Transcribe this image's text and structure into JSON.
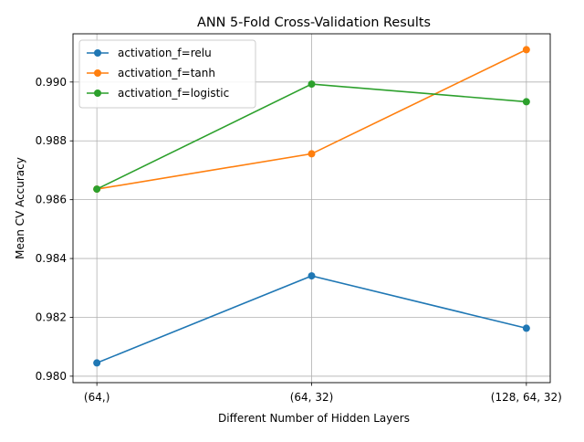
{
  "chart_data": {
    "type": "line",
    "title": "ANN 5-Fold Cross-Validation Results",
    "xlabel": "Different Number of Hidden Layers",
    "ylabel": "Mean CV Accuracy",
    "categories": [
      "(64,)",
      "(64, 32)",
      "(128, 64, 32)"
    ],
    "ylim": [
      0.97978,
      0.99164
    ],
    "yticks": [
      0.98,
      0.982,
      0.984,
      0.986,
      0.988,
      0.99
    ],
    "ytick_labels": [
      "0.980",
      "0.982",
      "0.984",
      "0.986",
      "0.988",
      "0.990"
    ],
    "grid": true,
    "legend_position": "top-left",
    "series": [
      {
        "name": "activation_f=relu",
        "color": "#1f77b4",
        "values": [
          0.98045,
          0.98341,
          0.98163
        ]
      },
      {
        "name": "activation_f=tanh",
        "color": "#ff7f0e",
        "values": [
          0.98636,
          0.98756,
          0.9911
        ]
      },
      {
        "name": "activation_f=logistic",
        "color": "#2ca02c",
        "values": [
          0.98636,
          0.98993,
          0.98933
        ]
      }
    ]
  }
}
